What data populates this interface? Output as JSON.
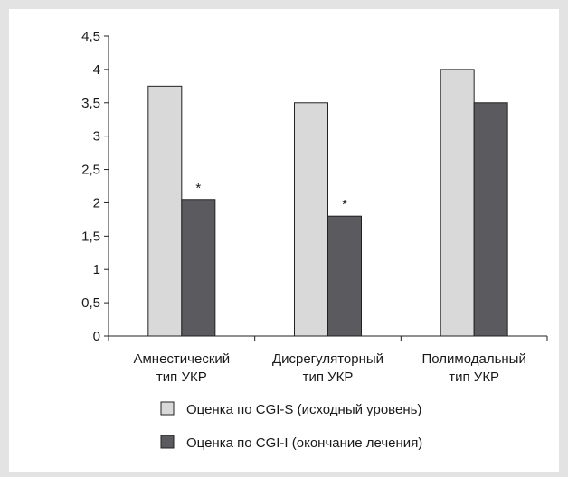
{
  "chart_data": {
    "type": "bar",
    "categories": [
      [
        "Амнестический",
        "тип УКР"
      ],
      [
        "Дисрегуляторный",
        "тип УКР"
      ],
      [
        "Полимодальный",
        "тип УКР"
      ]
    ],
    "series": [
      {
        "name": "Оценка по CGI-S (исходный уровень)",
        "values": [
          3.75,
          3.5,
          4.0
        ],
        "color": "#d9d9d9"
      },
      {
        "name": "Оценка по CGI-I (окончание лечения)",
        "values": [
          2.05,
          1.8,
          3.5
        ],
        "color": "#5a5a5f"
      }
    ],
    "annotations": [
      {
        "category_index": 0,
        "series_index": 1,
        "text": "*"
      },
      {
        "category_index": 1,
        "series_index": 1,
        "text": "*"
      }
    ],
    "yticks": [
      "0",
      "0,5",
      "1",
      "1,5",
      "2",
      "2,5",
      "3",
      "3,5",
      "4",
      "4,5"
    ],
    "ylim": [
      0,
      4.5
    ],
    "grid": false,
    "legend_position": "bottom",
    "title": "",
    "xlabel": "",
    "ylabel": ""
  }
}
